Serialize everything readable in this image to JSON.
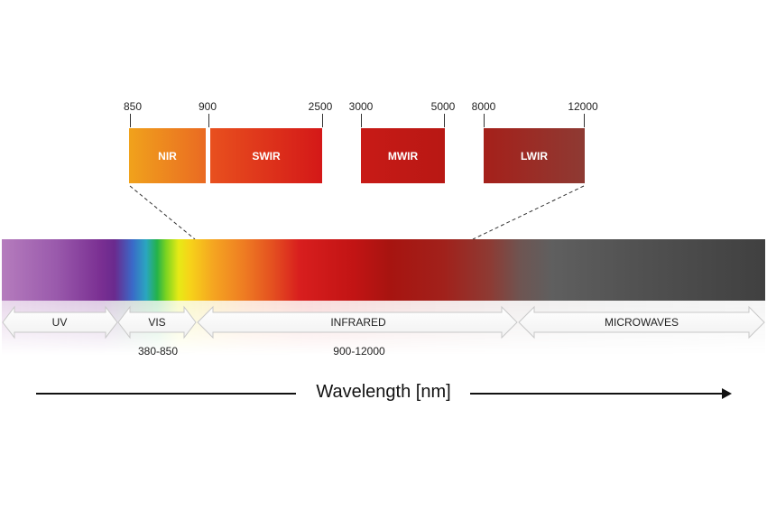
{
  "bands_ticks": {
    "t850": "850",
    "t900": "900",
    "t2500": "2500",
    "t3000": "3000",
    "t5000": "5000",
    "t8000": "8000",
    "t12000": "12000"
  },
  "bands": {
    "nir": "NIR",
    "swir": "SWIR",
    "mwir": "MWIR",
    "lwir": "LWIR"
  },
  "regions": {
    "uv": "UV",
    "vis": "VIS",
    "infrared": "INFRARED",
    "microwaves": "MICROWAVES"
  },
  "ranges": {
    "vis": "380-850",
    "infrared": "900-12000"
  },
  "axis": {
    "title": "Wavelength [nm]"
  },
  "colors": {
    "nir": "#ee8a22",
    "swir": "#e03a1e",
    "mwir": "#c01b16",
    "lwir": "#a82e28"
  }
}
